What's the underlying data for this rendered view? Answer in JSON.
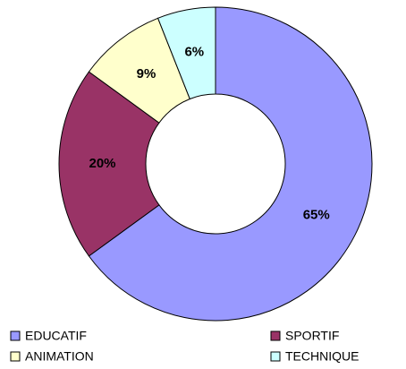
{
  "chart_data": {
    "type": "donut",
    "categories": [
      "EDUCATIF",
      "SPORTIF",
      "ANIMATION",
      "TECHNIQUE"
    ],
    "values": [
      65,
      20,
      9,
      6
    ],
    "value_labels": [
      "65%",
      "20%",
      "9%",
      "6%"
    ],
    "colors": [
      "#9999ff",
      "#993366",
      "#ffffcc",
      "#ccffff"
    ]
  }
}
